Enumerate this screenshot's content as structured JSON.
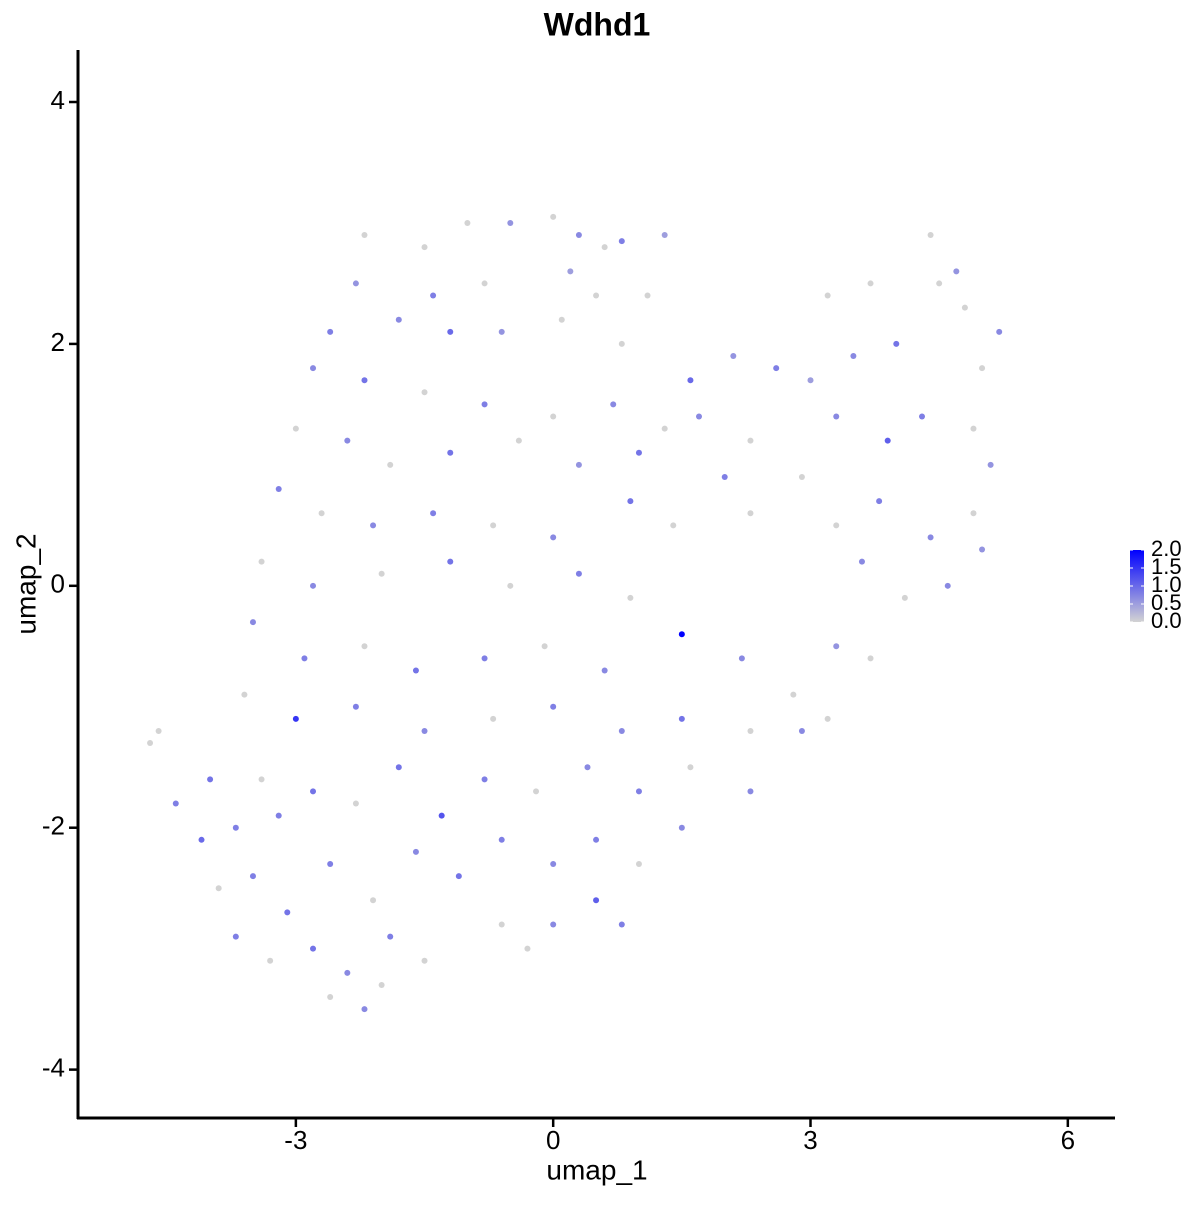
{
  "chart_data": {
    "type": "scatter",
    "title": "Wdhd1",
    "x_label": "umap_1",
    "y_label": "umap_2",
    "xlim": [
      -5.54,
      6.55
    ],
    "ylim": [
      -4.4,
      4.43
    ],
    "xticks": [
      -3,
      0,
      3,
      6
    ],
    "yticks": [
      -4,
      -2,
      0,
      2,
      4
    ],
    "color_scale": {
      "low": "#d3d3d3",
      "high": "#0000ff",
      "lim": [
        0,
        2
      ],
      "ticks": [
        {
          "value": 0,
          "label": "0.0"
        },
        {
          "value": 0.5,
          "label": "0.5"
        },
        {
          "value": 1,
          "label": "1.0"
        },
        {
          "value": 1.5,
          "label": "1.5"
        },
        {
          "value": 2,
          "label": "2.0"
        }
      ]
    },
    "x": [
      -2.2,
      -1.5,
      -1,
      -0.5,
      0,
      0.3,
      0.6,
      0.8,
      1.3,
      -2.3,
      -1.4,
      -0.8,
      0.2,
      0.5,
      1.1,
      -2.6,
      -1.8,
      -1.2,
      -0.6,
      0.1,
      0.8,
      -2.8,
      -2.2,
      -1.5,
      -0.8,
      0,
      0.7,
      1.3,
      1.6,
      2.1,
      2.6,
      3.0,
      3.5,
      4.0,
      4.5,
      4.8,
      5.2,
      4.4,
      4.7,
      5.0,
      3.2,
      3.7,
      -3.0,
      -2.4,
      -1.9,
      -1.2,
      -0.4,
      0.3,
      1.0,
      1.7,
      2.3,
      3.3,
      3.9,
      4.3,
      4.9,
      5.1,
      2.9,
      -3.2,
      -2.7,
      -2.1,
      -1.4,
      -0.7,
      0,
      0.9,
      1.4,
      2.0,
      2.3,
      3.3,
      3.8,
      4.4,
      4.9,
      5.0,
      -3.4,
      -2.8,
      -2.0,
      -1.2,
      -0.5,
      0.3,
      0.9,
      3.6,
      4.1,
      4.6,
      -3.5,
      -2.9,
      -2.2,
      -1.6,
      -0.8,
      -0.1,
      0.6,
      1.5,
      2.2,
      2.8,
      3.3,
      3.7,
      -3.6,
      -3.0,
      -2.3,
      -1.5,
      -0.7,
      0,
      0.8,
      1.5,
      2.3,
      2.9,
      3.2,
      -4.7,
      -4.6,
      -4.4,
      -4.0,
      -4.1,
      -3.7,
      -3.4,
      -3.2,
      -2.8,
      -2.3,
      -1.8,
      -1.3,
      -0.8,
      -0.2,
      0.4,
      1.0,
      1.6,
      2.3,
      -3.9,
      -3.5,
      -3.1,
      -2.6,
      -2.1,
      -1.6,
      -1.1,
      -0.6,
      0,
      0.5,
      1.0,
      1.5,
      -3.7,
      -3.3,
      -2.8,
      -2.4,
      -1.9,
      -1.5,
      -0.6,
      0,
      0.5,
      0.8,
      -2.6,
      -2.2,
      -2.0,
      -0.3
    ],
    "y": [
      2.9,
      2.8,
      3.0,
      3.0,
      3.05,
      2.9,
      2.8,
      2.85,
      2.9,
      2.5,
      2.4,
      2.5,
      2.6,
      2.4,
      2.4,
      2.1,
      2.2,
      2.1,
      2.1,
      2.2,
      2.0,
      1.8,
      1.7,
      1.6,
      1.5,
      1.4,
      1.5,
      1.3,
      1.7,
      1.9,
      1.8,
      1.7,
      1.9,
      2.0,
      2.5,
      2.3,
      2.1,
      2.9,
      2.6,
      1.8,
      2.4,
      2.5,
      1.3,
      1.2,
      1.0,
      1.1,
      1.2,
      1.0,
      1.1,
      1.4,
      1.2,
      1.4,
      1.2,
      1.4,
      1.3,
      1.0,
      0.9,
      0.8,
      0.6,
      0.5,
      0.6,
      0.5,
      0.4,
      0.7,
      0.5,
      0.9,
      0.6,
      0.5,
      0.7,
      0.4,
      0.6,
      0.3,
      0.2,
      0,
      0.1,
      0.2,
      0,
      0.1,
      -0.1,
      0.2,
      -0.1,
      0,
      -0.3,
      -0.6,
      -0.5,
      -0.7,
      -0.6,
      -0.5,
      -0.7,
      -0.4,
      -0.6,
      -0.9,
      -0.5,
      -0.6,
      -0.9,
      -1.1,
      -1.0,
      -1.2,
      -1.1,
      -1.0,
      -1.2,
      -1.1,
      -1.2,
      -1.2,
      -1.1,
      -1.3,
      -1.2,
      -1.8,
      -1.6,
      -2.1,
      -2.0,
      -1.6,
      -1.9,
      -1.7,
      -1.8,
      -1.5,
      -1.9,
      -1.6,
      -1.7,
      -1.5,
      -1.7,
      -1.5,
      -1.7,
      -2.5,
      -2.4,
      -2.7,
      -2.3,
      -2.6,
      -2.2,
      -2.4,
      -2.1,
      -2.3,
      -2.1,
      -2.3,
      -2.0,
      -2.9,
      -3.1,
      -3.0,
      -3.2,
      -2.9,
      -3.1,
      -2.8,
      -2.8,
      -2.6,
      -2.8,
      -3.4,
      -3.5,
      -3.3,
      -3.0
    ],
    "values": [
      0,
      0,
      0,
      0.6,
      0,
      0.7,
      0,
      0.8,
      0.5,
      0.6,
      0.8,
      0,
      0.5,
      0,
      0,
      0.8,
      0.7,
      1,
      0.6,
      0,
      0,
      0.7,
      0.9,
      0,
      0.8,
      0,
      0.7,
      0,
      1.0,
      0.6,
      0.8,
      0.5,
      0.7,
      0.9,
      0,
      0,
      0.7,
      0,
      0.6,
      0,
      0,
      0,
      0,
      0.7,
      0,
      0.9,
      0,
      0.6,
      0.9,
      0.7,
      0,
      0.7,
      1.1,
      0.8,
      0,
      0.6,
      0,
      0.8,
      0,
      0.7,
      0.8,
      0,
      0.7,
      0.9,
      0,
      0.8,
      0,
      0,
      0.8,
      0.7,
      0,
      0.6,
      0,
      0.7,
      0,
      0.9,
      0,
      0.8,
      0,
      0.7,
      0,
      0.7,
      0.7,
      0.8,
      0,
      0.9,
      0.8,
      0,
      0.7,
      2.0,
      0.7,
      0,
      0.6,
      0,
      0,
      1.5,
      0.8,
      0.7,
      0,
      0.8,
      0.7,
      0.9,
      0,
      0.7,
      0,
      0,
      0,
      0.8,
      0.9,
      1.0,
      0.8,
      0,
      0.8,
      0.9,
      0,
      0.9,
      1.2,
      0.8,
      0,
      0.7,
      0.8,
      0,
      0.7,
      0,
      0.8,
      0.9,
      0.8,
      0,
      0.7,
      0.9,
      0.8,
      0.7,
      0.8,
      0,
      0.7,
      0.8,
      0,
      0.9,
      0.7,
      0.8,
      0,
      0,
      0.7,
      1.1,
      0.8,
      0,
      0.7,
      0,
      0
    ]
  }
}
